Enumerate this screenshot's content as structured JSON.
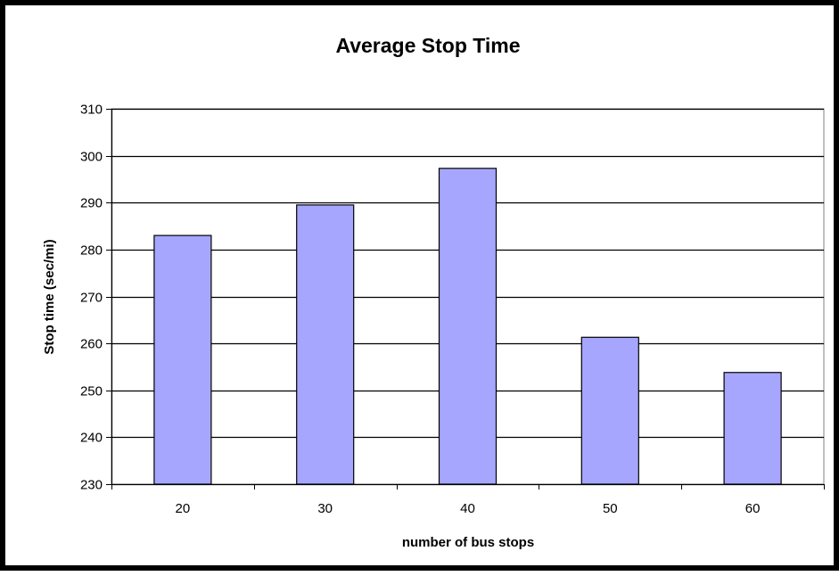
{
  "chart_data": {
    "type": "bar",
    "title": "Average Stop Time",
    "xlabel": "number of bus stops",
    "ylabel": "Stop time (sec/mi)",
    "categories": [
      "20",
      "30",
      "40",
      "50",
      "60"
    ],
    "values": [
      283,
      289.5,
      297.3,
      261.3,
      253.8
    ],
    "ylim": [
      230,
      310
    ],
    "yticks": [
      230,
      240,
      250,
      260,
      270,
      280,
      290,
      300,
      310
    ],
    "ytick_labels": [
      "230",
      "240",
      "250",
      "260",
      "270",
      "280",
      "290",
      "300",
      "310"
    ],
    "grid": true,
    "legend": "none",
    "colors": {
      "bar_fill": "#a6a6ff",
      "bar_stroke": "#000000",
      "gridline": "#000000",
      "plot_border": "#808080"
    }
  }
}
